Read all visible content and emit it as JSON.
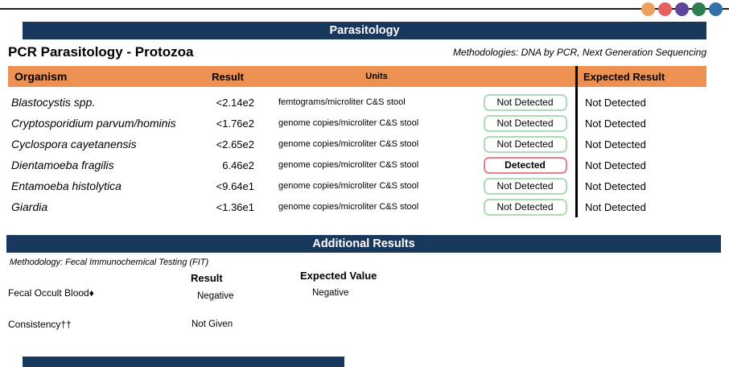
{
  "report": {
    "decor_dot_colors": [
      "#eda05b",
      "#e66060",
      "#5d459b",
      "#2e7d52",
      "#3173a9"
    ],
    "colors": {
      "navy": "#17375d",
      "orange": "#ec9151",
      "badge_not_detected_border": "#aedbb2",
      "badge_detected_border": "#e8808c"
    },
    "parasitology": {
      "banner": "Parasitology",
      "title": "PCR Parasitology - Protozoa",
      "methodologies": "Methodologies:  DNA by PCR, Next Generation Sequencing",
      "columns": {
        "organism": "Organism",
        "result": "Result",
        "units": "Units",
        "expected": "Expected Result"
      },
      "rows": [
        {
          "organism": "Blastocystis  spp.",
          "result": "<2.14e2",
          "units": "femtograms/microliter C&S stool",
          "status": "Not Detected",
          "expected": "Not Detected"
        },
        {
          "organism": "Cryptosporidium parvum/hominis",
          "result": "<1.76e2",
          "units": "genome copies/microliter C&S stool",
          "status": "Not Detected",
          "expected": "Not Detected"
        },
        {
          "organism": "Cyclospora cayetanensis",
          "result": "<2.65e2",
          "units": "genome copies/microliter C&S stool",
          "status": "Not Detected",
          "expected": "Not Detected"
        },
        {
          "organism": "Dientamoeba fragilis",
          "result": "6.46e2",
          "units": "genome copies/microliter C&S stool",
          "status": "Detected",
          "expected": "Not Detected"
        },
        {
          "organism": "Entamoeba histolytica",
          "result": "<9.64e1",
          "units": "genome copies/microliter C&S stool",
          "status": "Not Detected",
          "expected": "Not Detected"
        },
        {
          "organism": "Giardia",
          "result": "<1.36e1",
          "units": "genome copies/microliter C&S stool",
          "status": "Not Detected",
          "expected": "Not Detected"
        }
      ]
    },
    "additional": {
      "banner": "Additional Results",
      "methodology": "Methodology: Fecal Immunochemical Testing (FIT)",
      "columns": {
        "result": "Result",
        "expected": "Expected Value"
      },
      "rows": [
        {
          "label": "Fecal Occult Blood♦",
          "result": "Negative",
          "expected": "Negative"
        },
        {
          "label": "Consistency††",
          "result": "Not Given",
          "expected": ""
        }
      ]
    }
  }
}
